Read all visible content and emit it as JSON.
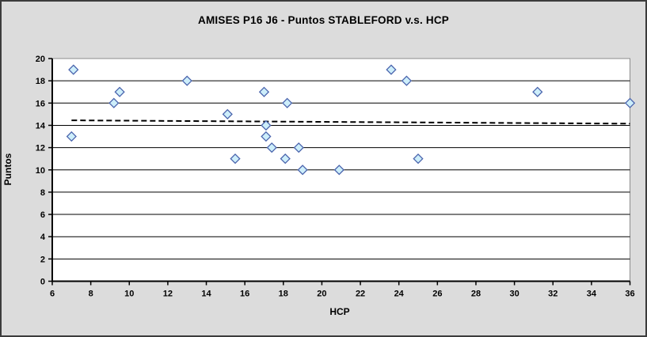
{
  "chart_data": {
    "type": "scatter",
    "title": "AMISES P16 J6 - Puntos STABLEFORD v.s. HCP",
    "xlabel": "HCP",
    "ylabel": "Puntos",
    "xlim": [
      6,
      36
    ],
    "ylim": [
      0,
      20
    ],
    "x_ticks": [
      6,
      8,
      10,
      12,
      14,
      16,
      18,
      20,
      22,
      24,
      26,
      28,
      30,
      32,
      34,
      36
    ],
    "y_ticks": [
      0,
      2,
      4,
      6,
      8,
      10,
      12,
      14,
      16,
      18,
      20
    ],
    "grid": "horizontal",
    "legend": "none",
    "points": [
      {
        "x": 7.0,
        "y": 13
      },
      {
        "x": 7.1,
        "y": 19
      },
      {
        "x": 9.2,
        "y": 16
      },
      {
        "x": 9.5,
        "y": 17
      },
      {
        "x": 13.0,
        "y": 18
      },
      {
        "x": 15.1,
        "y": 15
      },
      {
        "x": 15.5,
        "y": 11
      },
      {
        "x": 17.0,
        "y": 17
      },
      {
        "x": 17.1,
        "y": 14
      },
      {
        "x": 17.1,
        "y": 13
      },
      {
        "x": 17.4,
        "y": 12
      },
      {
        "x": 18.1,
        "y": 11
      },
      {
        "x": 18.2,
        "y": 16
      },
      {
        "x": 18.8,
        "y": 12
      },
      {
        "x": 19.0,
        "y": 10
      },
      {
        "x": 20.9,
        "y": 10
      },
      {
        "x": 23.6,
        "y": 19
      },
      {
        "x": 24.4,
        "y": 18
      },
      {
        "x": 25.0,
        "y": 11
      },
      {
        "x": 31.2,
        "y": 17
      },
      {
        "x": 36.0,
        "y": 16
      }
    ],
    "trendline": {
      "x1": 7,
      "y1": 14.45,
      "x2": 36,
      "y2": 14.15,
      "style": "dashed"
    },
    "colors": {
      "frame_border": "#3c3c3c",
      "background": "#dcdcdc",
      "plot_background": "#ffffff",
      "plot_border": "#8c8c8c",
      "gridline": "#000000",
      "axis": "#000000",
      "tick_label": "#000000",
      "marker_fill": "#cdeefa",
      "marker_stroke": "#4a64ad",
      "trendline": "#000000"
    }
  }
}
